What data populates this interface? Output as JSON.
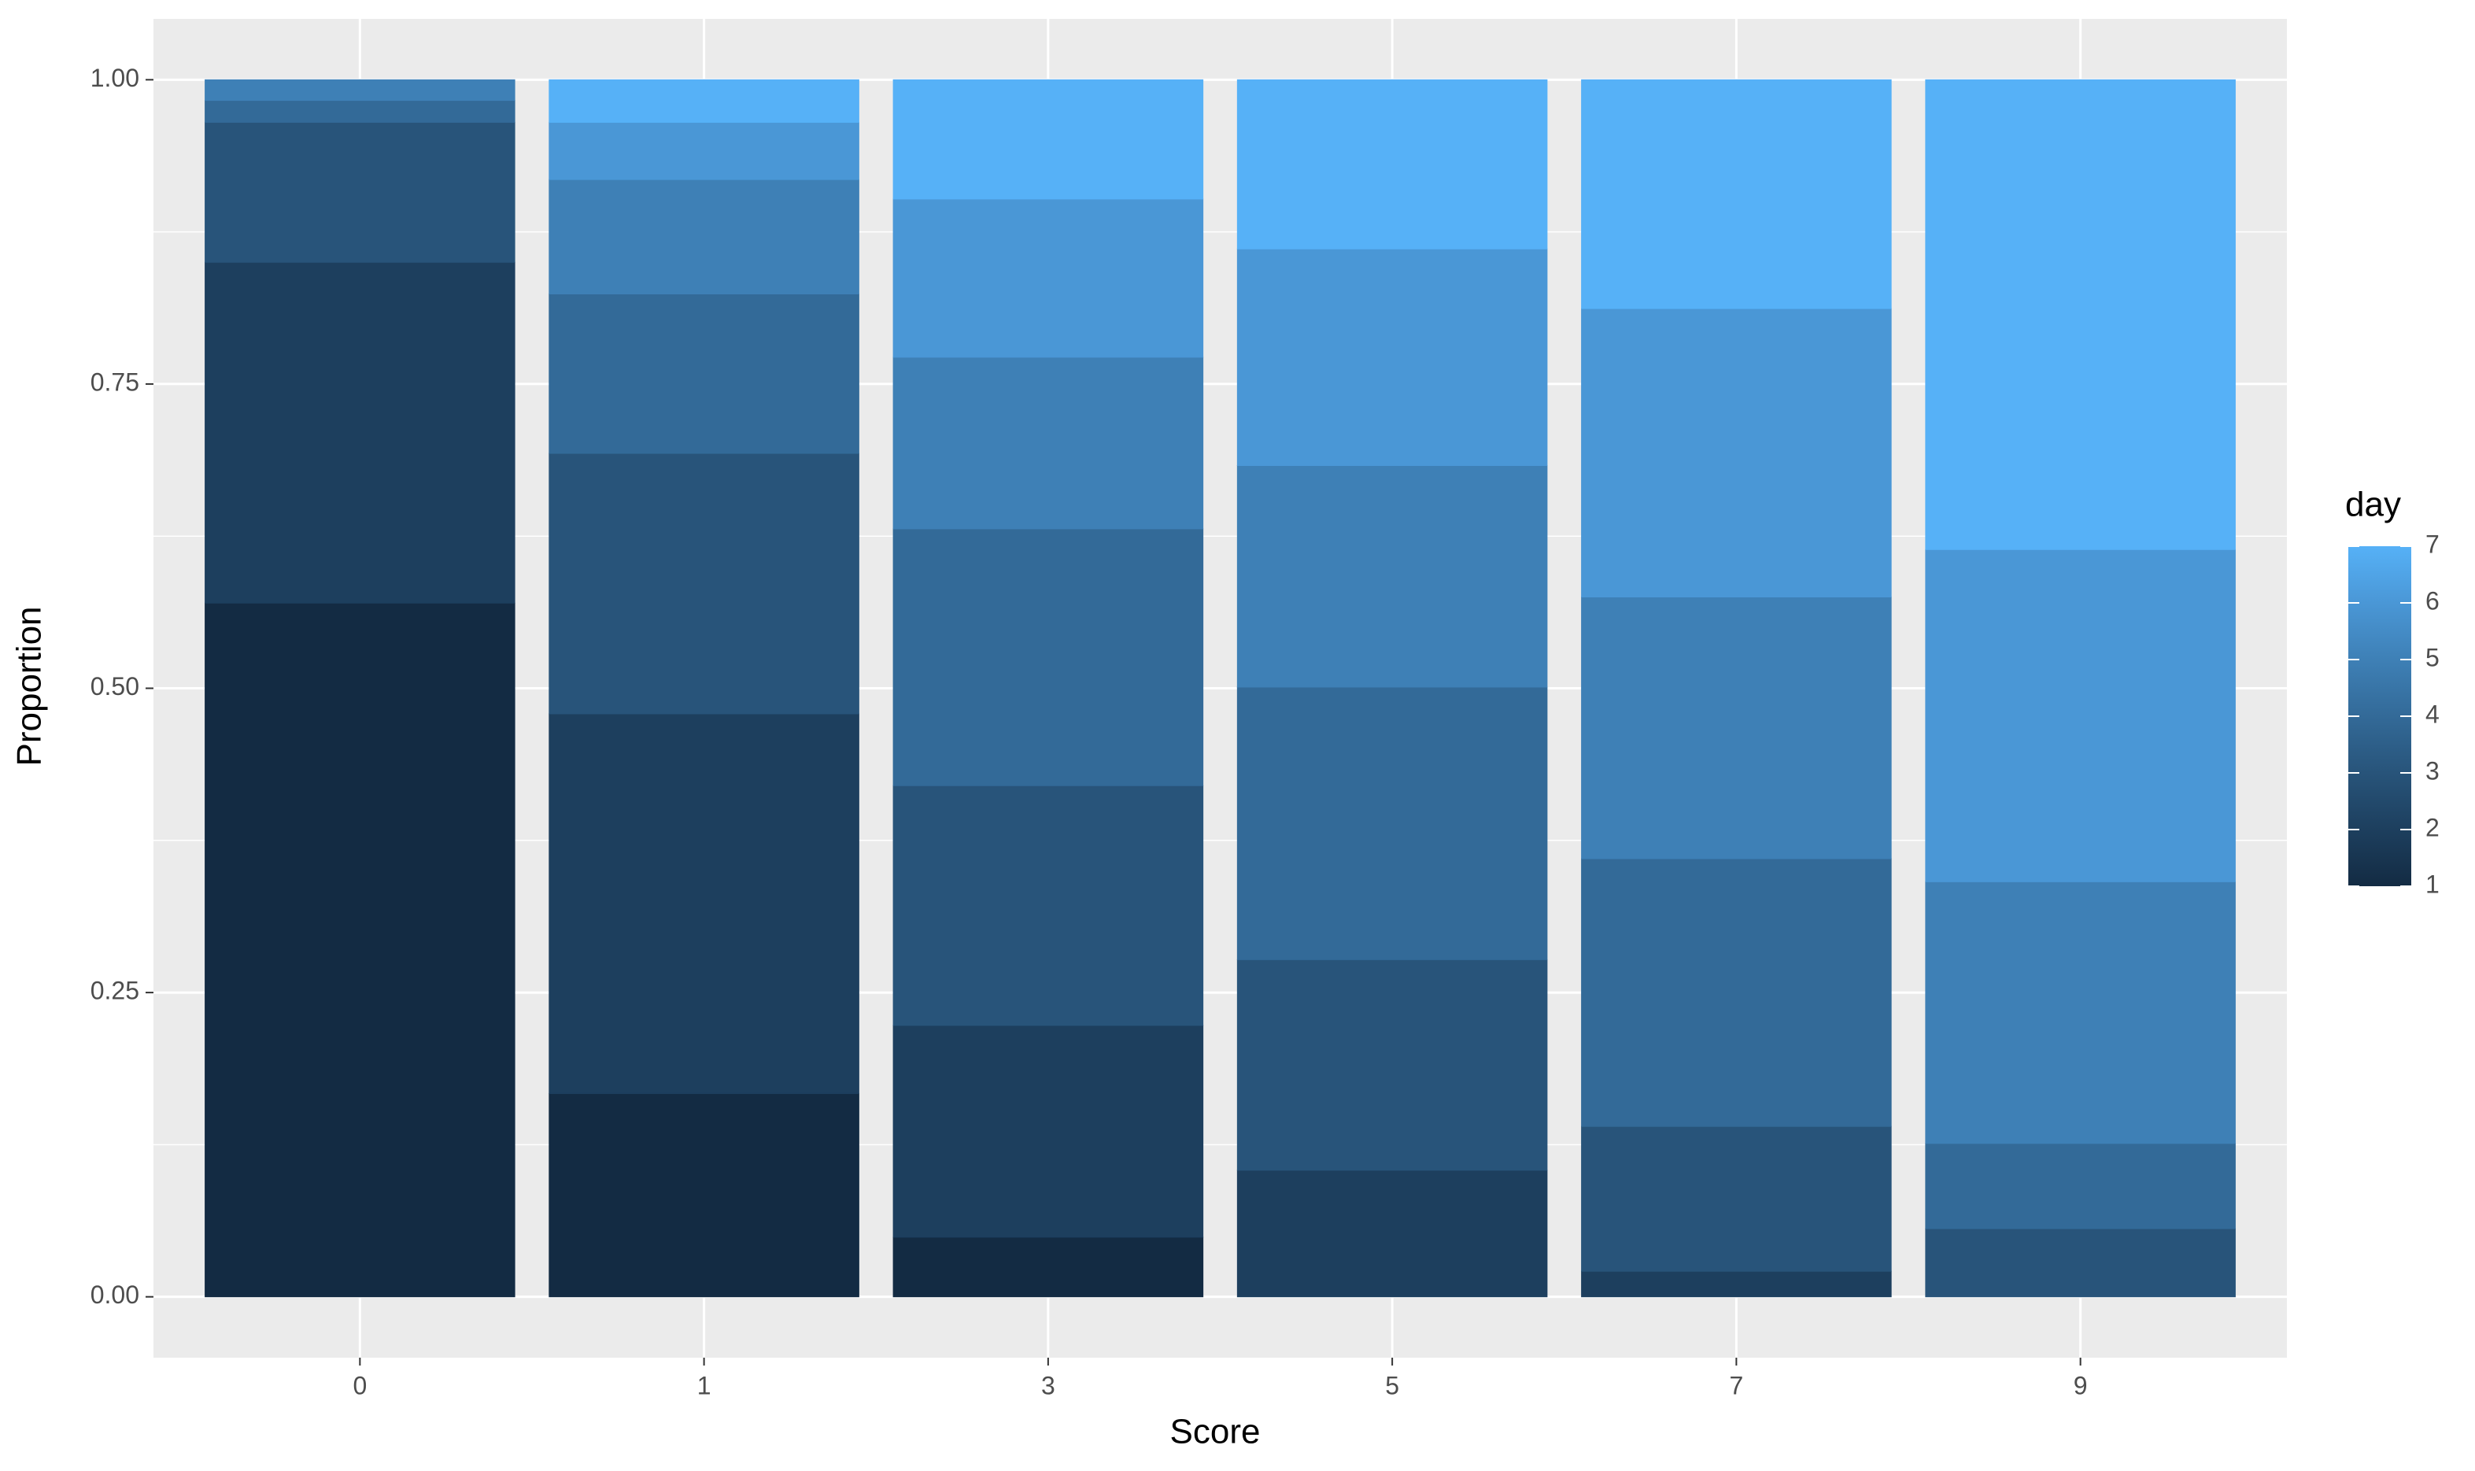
{
  "chart_data": {
    "type": "stacked_bar",
    "x_label": "Score",
    "y_label": "Proportion",
    "legend_title": "day",
    "categories": [
      "0",
      "1",
      "3",
      "5",
      "7",
      "9"
    ],
    "series": [
      {
        "name": "1",
        "color": "#132B43",
        "values": [
          0.57,
          0.167,
          0.049,
          0,
          0,
          0
        ]
      },
      {
        "name": "2",
        "color": "#1D3F5E",
        "values": [
          0.28,
          0.312,
          0.174,
          0.104,
          0.021,
          0
        ]
      },
      {
        "name": "3",
        "color": "#28547A",
        "values": [
          0.115,
          0.214,
          0.197,
          0.173,
          0.119,
          0.056
        ]
      },
      {
        "name": "4",
        "color": "#336A98",
        "values": [
          0.018,
          0.131,
          0.211,
          0.224,
          0.22,
          0.07
        ]
      },
      {
        "name": "5",
        "color": "#3E80B6",
        "values": [
          0.017,
          0.094,
          0.141,
          0.182,
          0.215,
          0.215
        ]
      },
      {
        "name": "6",
        "color": "#4A97D6",
        "values": [
          0,
          0.047,
          0.13,
          0.178,
          0.237,
          0.273
        ]
      },
      {
        "name": "7",
        "color": "#56B1F7",
        "values": [
          0,
          0.035,
          0.098,
          0.139,
          0.188,
          0.386
        ]
      }
    ],
    "ylim": [
      -0.05,
      1.05
    ],
    "yticks": [
      {
        "value": 0,
        "label": "0.00"
      },
      0.25,
      {
        "value": 0.5,
        "label": "0.50"
      },
      0.75,
      {
        "value": 1,
        "label": "1.00"
      }
    ],
    "grid": true,
    "legend_position": "right"
  }
}
